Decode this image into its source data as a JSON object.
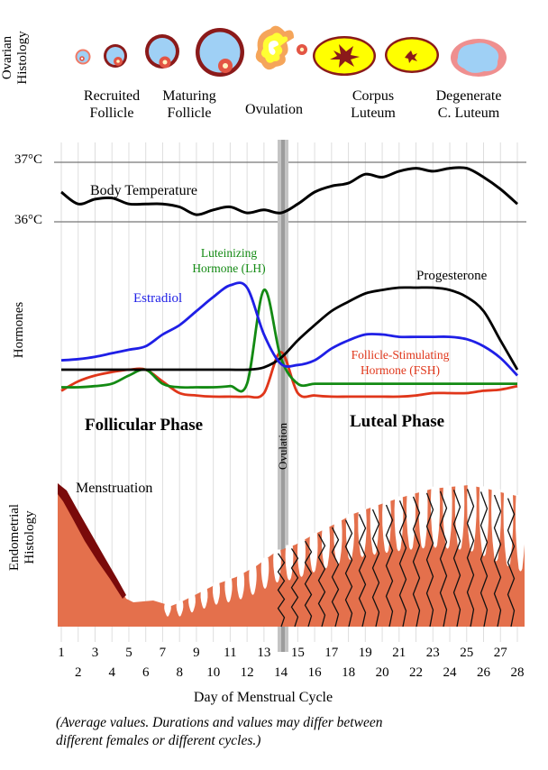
{
  "ovarian": {
    "axis_label_line1": "Ovarian",
    "axis_label_line2": "Histology",
    "stages": [
      {
        "line1": "Recruited",
        "line2": "Follicle"
      },
      {
        "line1": "Maturing",
        "line2": "Follicle"
      },
      {
        "line1": "Ovulation",
        "line2": ""
      },
      {
        "line1": "Corpus",
        "line2": "Luteum"
      },
      {
        "line1": "Degenerate",
        "line2": "C. Luteum"
      }
    ]
  },
  "temperature": {
    "top_label": "37°C",
    "bottom_label": "36°C",
    "series_label": "Body Temperature"
  },
  "hormones": {
    "axis_label": "Hormones",
    "lh_line1": "Luteinizing",
    "lh_line2": "Hormone (LH)",
    "estradiol": "Estradiol",
    "progesterone": "Progesterone",
    "fsh_line1": "Follicle-Stimulating",
    "fsh_line2": "Hormone (FSH)",
    "follicular_phase": "Follicular Phase",
    "luteal_phase": "Luteal Phase",
    "ovulation": "Ovulation"
  },
  "endometrial": {
    "axis_label_line1": "Endometrial",
    "axis_label_line2": "Histology",
    "menstruation": "Menstruation"
  },
  "x_axis": {
    "title": "Day of Menstrual Cycle",
    "odd_days": [
      "1",
      "3",
      "5",
      "7",
      "9",
      "11",
      "13",
      "15",
      "17",
      "19",
      "21",
      "23",
      "25",
      "27"
    ],
    "even_days": [
      "2",
      "4",
      "6",
      "8",
      "10",
      "12",
      "14",
      "16",
      "18",
      "20",
      "22",
      "24",
      "26",
      "28"
    ]
  },
  "caption_line1": "(Average values. Durations and values may differ between",
  "caption_line2": "different females or different cycles.)",
  "colors": {
    "estradiol": "#1f1fe6",
    "lh": "#138a13",
    "fsh": "#e0361a",
    "progesterone": "#000000",
    "follicle_fluid": "#9fd0f5",
    "follicle_wall": "#8b1a1a",
    "follicle_rim": "#e8806a",
    "corpus_luteum": "#ffff00",
    "endometrium": "#e4704c",
    "menstrual_blood": "#7a0a0a"
  },
  "chart_data": [
    {
      "type": "line",
      "title": "Body Temperature",
      "xlabel": "Day of Menstrual Cycle",
      "ylabel": "",
      "ylim": [
        36,
        37
      ],
      "series": [
        {
          "name": "Body Temperature",
          "x": [
            1,
            2,
            3,
            4,
            5,
            6,
            7,
            8,
            9,
            10,
            11,
            12,
            13,
            14,
            15,
            16,
            17,
            18,
            19,
            20,
            21,
            22,
            23,
            24,
            25,
            26,
            27,
            28
          ],
          "values": [
            36.5,
            36.3,
            36.38,
            36.4,
            36.3,
            36.3,
            36.3,
            36.25,
            36.12,
            36.2,
            36.25,
            36.15,
            36.2,
            36.15,
            36.3,
            36.5,
            36.6,
            36.65,
            36.8,
            36.75,
            36.85,
            36.9,
            36.85,
            36.9,
            36.9,
            36.75,
            36.55,
            36.3
          ]
        }
      ]
    },
    {
      "type": "line",
      "title": "",
      "xlabel": "Day of Menstrual Cycle",
      "ylabel": "Hormones",
      "series": [
        {
          "name": "Estradiol",
          "x": [
            1,
            2,
            3,
            4,
            5,
            6,
            7,
            8,
            9,
            10,
            11,
            12,
            13,
            14,
            15,
            16,
            17,
            18,
            19,
            20,
            21,
            22,
            23,
            24,
            25,
            26,
            27,
            28
          ],
          "values": [
            0.08,
            0.09,
            0.11,
            0.14,
            0.17,
            0.2,
            0.3,
            0.38,
            0.5,
            0.62,
            0.72,
            0.7,
            0.3,
            0.05,
            0.04,
            0.08,
            0.18,
            0.25,
            0.3,
            0.3,
            0.28,
            0.28,
            0.28,
            0.28,
            0.26,
            0.2,
            0.1,
            -0.05
          ]
        },
        {
          "name": "Progesterone",
          "x": [
            1,
            2,
            3,
            4,
            5,
            6,
            7,
            8,
            9,
            10,
            11,
            12,
            13,
            14,
            15,
            16,
            17,
            18,
            19,
            20,
            21,
            22,
            23,
            24,
            25,
            26,
            27,
            28
          ],
          "values": [
            0.0,
            0.0,
            0.0,
            0.0,
            0.0,
            0.0,
            0.0,
            0.0,
            0.0,
            0.0,
            0.0,
            0.0,
            0.02,
            0.1,
            0.25,
            0.38,
            0.5,
            0.58,
            0.65,
            0.68,
            0.7,
            0.7,
            0.7,
            0.68,
            0.62,
            0.5,
            0.25,
            0.0
          ]
        },
        {
          "name": "Luteinizing Hormone (LH)",
          "x": [
            1,
            2,
            3,
            4,
            5,
            6,
            7,
            8,
            9,
            10,
            11,
            12,
            13,
            14,
            15,
            16,
            17,
            18,
            19,
            20,
            21,
            22,
            23,
            24,
            25,
            26,
            27,
            28
          ],
          "values": [
            -0.15,
            -0.15,
            -0.14,
            -0.12,
            -0.05,
            0.0,
            -0.12,
            -0.15,
            -0.15,
            -0.15,
            -0.14,
            -0.12,
            0.68,
            0.1,
            -0.12,
            -0.12,
            -0.12,
            -0.12,
            -0.12,
            -0.12,
            -0.12,
            -0.12,
            -0.12,
            -0.12,
            -0.12,
            -0.12,
            -0.12,
            -0.12
          ]
        },
        {
          "name": "Follicle-Stimulating Hormone (FSH)",
          "x": [
            1,
            2,
            3,
            4,
            5,
            6,
            7,
            8,
            9,
            10,
            11,
            12,
            13,
            14,
            15,
            16,
            17,
            18,
            19,
            20,
            21,
            22,
            23,
            24,
            25,
            26,
            27,
            28
          ],
          "values": [
            -0.18,
            -0.1,
            -0.05,
            -0.02,
            0.0,
            0.0,
            -0.1,
            -0.2,
            -0.22,
            -0.23,
            -0.23,
            -0.23,
            -0.2,
            0.15,
            -0.2,
            -0.22,
            -0.23,
            -0.23,
            -0.23,
            -0.23,
            -0.23,
            -0.22,
            -0.2,
            -0.2,
            -0.2,
            -0.18,
            -0.17,
            -0.14
          ]
        }
      ]
    }
  ]
}
